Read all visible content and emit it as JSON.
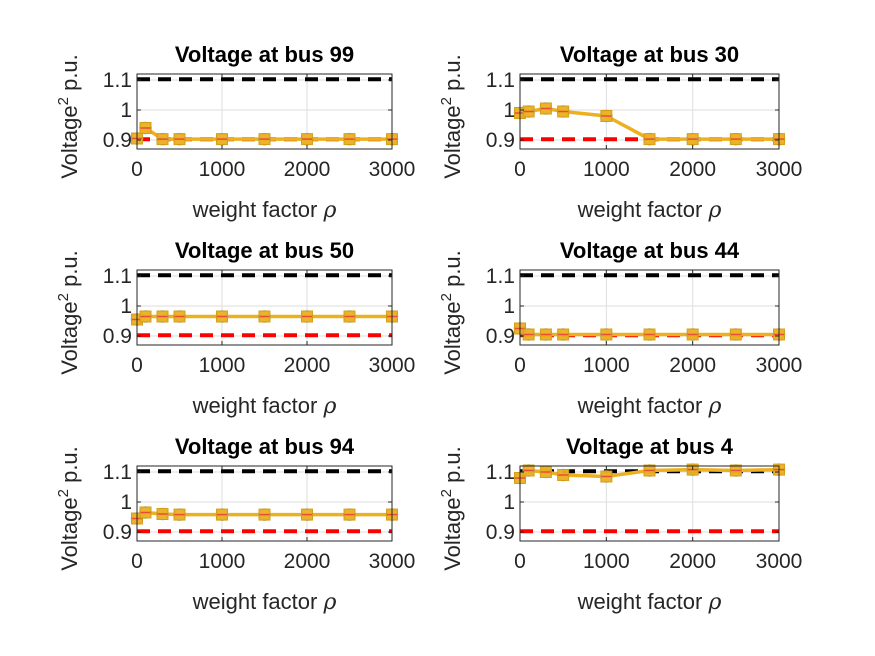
{
  "chart_data": [
    {
      "type": "line",
      "title": "Voltage at bus 99",
      "xlabel": "weight factor ρ",
      "ylabel": "Voltage² p.u.",
      "xlim": [
        0,
        3000
      ],
      "ylim": [
        0.87,
        1.12
      ],
      "xticks": [
        "0",
        "1000",
        "2000",
        "3000"
      ],
      "yticks": [
        "0.9",
        "1",
        "1.1"
      ],
      "grid": true,
      "upper_limit": 1.1025,
      "lower_limit": 0.9025,
      "x": [
        0,
        100,
        300,
        500,
        1000,
        1500,
        2000,
        2500,
        3000
      ],
      "values": [
        0.905,
        0.94,
        0.903,
        0.903,
        0.903,
        0.903,
        0.903,
        0.903,
        0.903
      ]
    },
    {
      "type": "line",
      "title": "Voltage at bus 30",
      "xlabel": "weight factor ρ",
      "ylabel": "Voltage² p.u.",
      "xlim": [
        0,
        3000
      ],
      "ylim": [
        0.87,
        1.12
      ],
      "xticks": [
        "0",
        "1000",
        "2000",
        "3000"
      ],
      "yticks": [
        "0.9",
        "1",
        "1.1"
      ],
      "grid": true,
      "upper_limit": 1.1025,
      "lower_limit": 0.9025,
      "x": [
        0,
        100,
        300,
        500,
        1000,
        1500,
        2000,
        2500,
        3000
      ],
      "values": [
        0.99,
        0.995,
        1.005,
        0.995,
        0.98,
        0.903,
        0.903,
        0.903,
        0.903
      ]
    },
    {
      "type": "line",
      "title": "Voltage at bus 50",
      "xlabel": "weight factor ρ",
      "ylabel": "Voltage² p.u.",
      "xlim": [
        0,
        3000
      ],
      "ylim": [
        0.87,
        1.12
      ],
      "xticks": [
        "0",
        "1000",
        "2000",
        "3000"
      ],
      "yticks": [
        "0.9",
        "1",
        "1.1"
      ],
      "grid": true,
      "upper_limit": 1.1025,
      "lower_limit": 0.9025,
      "x": [
        0,
        100,
        300,
        500,
        1000,
        1500,
        2000,
        2500,
        3000
      ],
      "values": [
        0.955,
        0.965,
        0.965,
        0.965,
        0.965,
        0.965,
        0.965,
        0.965,
        0.965
      ]
    },
    {
      "type": "line",
      "title": "Voltage at bus 44",
      "xlabel": "weight factor ρ",
      "ylabel": "Voltage² p.u.",
      "xlim": [
        0,
        3000
      ],
      "ylim": [
        0.87,
        1.12
      ],
      "xticks": [
        "0",
        "1000",
        "2000",
        "3000"
      ],
      "yticks": [
        "0.9",
        "1",
        "1.1"
      ],
      "grid": true,
      "upper_limit": 1.1025,
      "lower_limit": 0.9025,
      "x": [
        0,
        100,
        300,
        500,
        1000,
        1500,
        2000,
        2500,
        3000
      ],
      "values": [
        0.925,
        0.905,
        0.905,
        0.905,
        0.905,
        0.905,
        0.905,
        0.905,
        0.905
      ]
    },
    {
      "type": "line",
      "title": "Voltage at bus 94",
      "xlabel": "weight factor ρ",
      "ylabel": "Voltage² p.u.",
      "xlim": [
        0,
        3000
      ],
      "ylim": [
        0.87,
        1.12
      ],
      "xticks": [
        "0",
        "1000",
        "2000",
        "3000"
      ],
      "yticks": [
        "0.9",
        "1",
        "1.1"
      ],
      "grid": true,
      "upper_limit": 1.1025,
      "lower_limit": 0.9025,
      "x": [
        0,
        100,
        300,
        500,
        1000,
        1500,
        2000,
        2500,
        3000
      ],
      "values": [
        0.945,
        0.965,
        0.96,
        0.958,
        0.958,
        0.958,
        0.958,
        0.958,
        0.958
      ]
    },
    {
      "type": "line",
      "title": "Voltage at bus 4",
      "xlabel": "weight factor ρ",
      "ylabel": "Voltage² p.u.",
      "xlim": [
        0,
        3000
      ],
      "ylim": [
        0.87,
        1.12
      ],
      "xticks": [
        "0",
        "1000",
        "2000",
        "3000"
      ],
      "yticks": [
        "0.9",
        "1",
        "1.1"
      ],
      "grid": true,
      "upper_limit": 1.1025,
      "lower_limit": 0.9025,
      "x": [
        0,
        100,
        300,
        500,
        1000,
        1500,
        2000,
        2500,
        3000
      ],
      "values": [
        1.08,
        1.105,
        1.1,
        1.09,
        1.085,
        1.105,
        1.108,
        1.105,
        1.108
      ]
    }
  ],
  "colors": {
    "series_line": "#EDB120",
    "series_marker_edge": "#4DBEEE",
    "upper_limit_line": "#000000",
    "lower_limit_line": "#FF0000",
    "grid": "#dedede",
    "axes": "#262626"
  }
}
